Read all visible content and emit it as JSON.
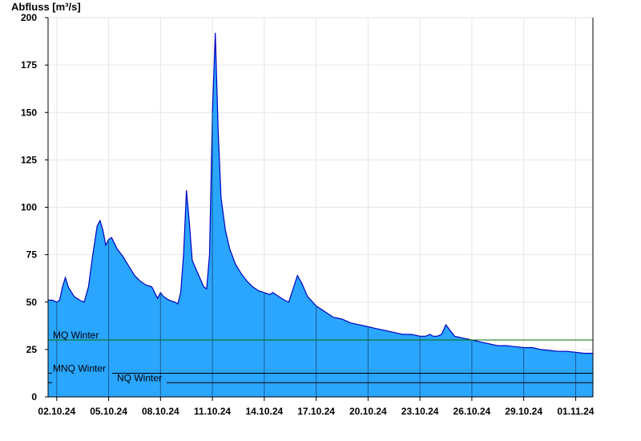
{
  "chart_data": {
    "type": "area",
    "title": "",
    "ylabel": "Abfluss [m³/s]",
    "xlabel": "",
    "ylim": [
      0,
      200
    ],
    "yticks": [
      0,
      25,
      50,
      75,
      100,
      125,
      150,
      175,
      200
    ],
    "xlim": [
      "2024-10-01T12:00",
      "2024-11-02T00:00"
    ],
    "xticks": [
      "02.10.24",
      "05.10.24",
      "08.10.24",
      "11.10.24",
      "14.10.24",
      "17.10.24",
      "20.10.24",
      "23.10.24",
      "26.10.24",
      "29.10.24",
      "01.11.24"
    ],
    "grid": true,
    "colors": {
      "fill": "#2aa6ff",
      "line": "#0000c0",
      "mq": "#007000",
      "mnq": "#000000",
      "nq": "#000000"
    },
    "reference_lines": [
      {
        "label": "MQ Winter",
        "value": 30
      },
      {
        "label": "MNQ Winter",
        "value": 12.5
      },
      {
        "label": "NQ Winter",
        "value": 7.5
      }
    ],
    "series": [
      {
        "name": "",
        "points": [
          [
            "2024-10-01T12:00",
            51
          ],
          [
            "2024-10-01T18:00",
            51
          ],
          [
            "2024-10-02T00:00",
            50
          ],
          [
            "2024-10-02T04:00",
            51
          ],
          [
            "2024-10-02T08:00",
            58
          ],
          [
            "2024-10-02T12:00",
            63
          ],
          [
            "2024-10-02T16:00",
            58
          ],
          [
            "2024-10-03T00:00",
            53
          ],
          [
            "2024-10-03T08:00",
            51
          ],
          [
            "2024-10-03T14:00",
            50
          ],
          [
            "2024-10-03T20:00",
            58
          ],
          [
            "2024-10-04T02:00",
            75
          ],
          [
            "2024-10-04T08:00",
            90
          ],
          [
            "2024-10-04T12:00",
            93
          ],
          [
            "2024-10-04T16:00",
            88
          ],
          [
            "2024-10-04T20:00",
            80
          ],
          [
            "2024-10-05T00:00",
            83
          ],
          [
            "2024-10-05T04:00",
            84
          ],
          [
            "2024-10-05T12:00",
            78
          ],
          [
            "2024-10-05T20:00",
            74
          ],
          [
            "2024-10-06T04:00",
            69
          ],
          [
            "2024-10-06T12:00",
            64
          ],
          [
            "2024-10-06T20:00",
            61
          ],
          [
            "2024-10-07T04:00",
            59
          ],
          [
            "2024-10-07T12:00",
            58
          ],
          [
            "2024-10-07T16:00",
            55
          ],
          [
            "2024-10-07T20:00",
            52
          ],
          [
            "2024-10-08T00:00",
            55
          ],
          [
            "2024-10-08T04:00",
            53
          ],
          [
            "2024-10-08T12:00",
            51
          ],
          [
            "2024-10-08T20:00",
            50
          ],
          [
            "2024-10-09T00:00",
            49
          ],
          [
            "2024-10-09T04:00",
            55
          ],
          [
            "2024-10-09T08:00",
            75
          ],
          [
            "2024-10-09T12:00",
            109
          ],
          [
            "2024-10-09T16:00",
            92
          ],
          [
            "2024-10-09T20:00",
            72
          ],
          [
            "2024-10-10T04:00",
            65
          ],
          [
            "2024-10-10T12:00",
            58
          ],
          [
            "2024-10-10T16:00",
            57
          ],
          [
            "2024-10-10T20:00",
            75
          ],
          [
            "2024-10-11T00:00",
            150
          ],
          [
            "2024-10-11T04:00",
            192
          ],
          [
            "2024-10-11T08:00",
            140
          ],
          [
            "2024-10-11T12:00",
            105
          ],
          [
            "2024-10-11T18:00",
            88
          ],
          [
            "2024-10-12T00:00",
            78
          ],
          [
            "2024-10-12T08:00",
            70
          ],
          [
            "2024-10-12T16:00",
            65
          ],
          [
            "2024-10-13T00:00",
            61
          ],
          [
            "2024-10-13T08:00",
            58
          ],
          [
            "2024-10-13T16:00",
            56
          ],
          [
            "2024-10-14T00:00",
            55
          ],
          [
            "2024-10-14T08:00",
            54
          ],
          [
            "2024-10-14T12:00",
            55
          ],
          [
            "2024-10-14T20:00",
            53
          ],
          [
            "2024-10-15T04:00",
            51
          ],
          [
            "2024-10-15T10:00",
            50
          ],
          [
            "2024-10-15T16:00",
            57
          ],
          [
            "2024-10-15T22:00",
            64
          ],
          [
            "2024-10-16T04:00",
            60
          ],
          [
            "2024-10-16T12:00",
            53
          ],
          [
            "2024-10-17T00:00",
            48
          ],
          [
            "2024-10-17T12:00",
            45
          ],
          [
            "2024-10-18T00:00",
            42
          ],
          [
            "2024-10-18T12:00",
            41
          ],
          [
            "2024-10-19T00:00",
            39
          ],
          [
            "2024-10-19T12:00",
            38
          ],
          [
            "2024-10-20T00:00",
            37
          ],
          [
            "2024-10-20T12:00",
            36
          ],
          [
            "2024-10-21T00:00",
            35
          ],
          [
            "2024-10-21T12:00",
            34
          ],
          [
            "2024-10-22T00:00",
            33
          ],
          [
            "2024-10-22T12:00",
            33
          ],
          [
            "2024-10-23T00:00",
            32
          ],
          [
            "2024-10-23T08:00",
            32
          ],
          [
            "2024-10-23T14:00",
            33
          ],
          [
            "2024-10-23T18:00",
            32
          ],
          [
            "2024-10-24T00:00",
            32
          ],
          [
            "2024-10-24T06:00",
            33
          ],
          [
            "2024-10-24T12:00",
            38
          ],
          [
            "2024-10-24T18:00",
            35
          ],
          [
            "2024-10-25T00:00",
            32
          ],
          [
            "2024-10-25T12:00",
            31
          ],
          [
            "2024-10-26T00:00",
            30
          ],
          [
            "2024-10-26T12:00",
            29
          ],
          [
            "2024-10-27T00:00",
            28
          ],
          [
            "2024-10-27T12:00",
            27
          ],
          [
            "2024-10-28T00:00",
            27
          ],
          [
            "2024-10-28T12:00",
            26.5
          ],
          [
            "2024-10-29T00:00",
            26
          ],
          [
            "2024-10-29T12:00",
            26
          ],
          [
            "2024-10-30T00:00",
            25
          ],
          [
            "2024-10-30T12:00",
            24.5
          ],
          [
            "2024-10-31T00:00",
            24
          ],
          [
            "2024-10-31T12:00",
            24
          ],
          [
            "2024-11-01T00:00",
            23.5
          ],
          [
            "2024-11-01T12:00",
            23
          ],
          [
            "2024-11-02T00:00",
            23
          ]
        ]
      }
    ]
  }
}
